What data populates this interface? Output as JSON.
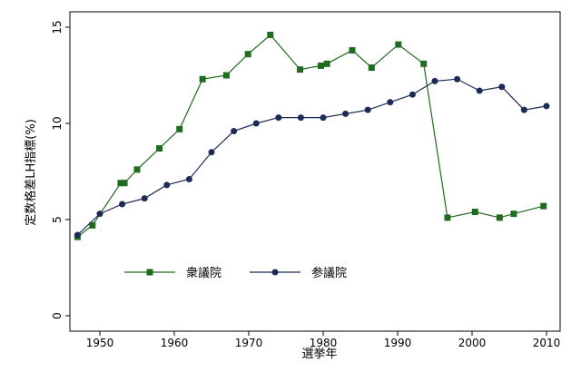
{
  "chart_data": {
    "type": "line",
    "title": "",
    "xlabel": "選挙年",
    "ylabel": "定数格差LH指標(%)",
    "xlim": [
      1947,
      2010
    ],
    "ylim": [
      0,
      15
    ],
    "xticks": [
      1950,
      1960,
      1970,
      1980,
      1990,
      2000,
      2010
    ],
    "yticks": [
      0,
      5,
      10,
      15
    ],
    "grid": false,
    "legend_position": "bottom-left",
    "series": [
      {
        "name": "衆議院",
        "color": "#1f6b1f",
        "marker": "square",
        "x": [
          1947,
          1949,
          1952.8,
          1953.3,
          1955,
          1958,
          1960.7,
          1963.8,
          1967,
          1969.9,
          1972.9,
          1976.9,
          1979.7,
          1980.5,
          1983.9,
          1986.5,
          1990.1,
          1993.5,
          1996.7,
          2000.4,
          2003.7,
          2005.6,
          2009.6
        ],
        "y": [
          4.1,
          4.7,
          6.9,
          6.9,
          7.6,
          8.7,
          9.7,
          12.3,
          12.5,
          13.6,
          14.6,
          12.8,
          13.0,
          13.1,
          13.8,
          12.9,
          14.1,
          13.1,
          5.1,
          5.4,
          5.1,
          5.3,
          5.7
        ]
      },
      {
        "name": "参議院",
        "color": "#1c2a55",
        "marker": "circle",
        "x": [
          1947,
          1950,
          1953,
          1956,
          1959,
          1962,
          1965,
          1968,
          1971,
          1974,
          1977,
          1980,
          1983,
          1986,
          1989,
          1992,
          1995,
          1998,
          2001,
          2004,
          2007,
          2010
        ],
        "y": [
          4.2,
          5.3,
          5.8,
          6.1,
          6.8,
          7.1,
          8.5,
          9.6,
          10.0,
          10.3,
          10.3,
          10.3,
          10.5,
          10.7,
          11.1,
          11.5,
          12.2,
          12.3,
          11.7,
          11.9,
          10.7,
          10.9
        ]
      }
    ]
  }
}
